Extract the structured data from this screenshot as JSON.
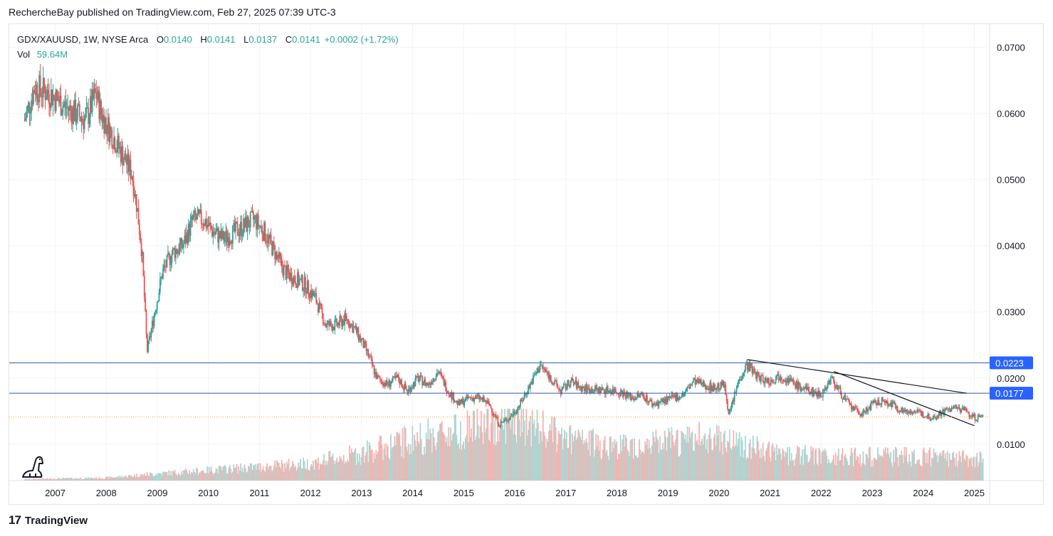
{
  "header": {
    "publisher": "RechercheBay published on TradingView.com, Feb 27, 2025 07:39 UTC-3"
  },
  "legend": {
    "symbol": "GDX/XAUUSD, 1W, NYSE Arca",
    "o_label": "O",
    "o_value": "0.0140",
    "h_label": "H",
    "h_value": "0.0141",
    "l_label": "L",
    "l_value": "0.0137",
    "c_label": "C",
    "c_value": "0.0141",
    "change": "+0.0002 (+1.72%)",
    "vol_label": "Vol",
    "vol_value": "59.64M"
  },
  "footer": {
    "brand": "TradingView",
    "logo": "tradingview-logo-icon"
  },
  "colors": {
    "up": "#26a69a",
    "down": "#ef5350",
    "hline": "#2a5caa",
    "trend": "#131722",
    "current": "#f7a625"
  },
  "chart_data": {
    "type": "candlestick",
    "symbol": "GDX/XAUUSD",
    "interval": "1W",
    "y_range": [
      0.0045,
      0.0735
    ],
    "x_range": [
      2006.1,
      2025.3
    ],
    "y_ticks": [
      "0.0700",
      "0.0600",
      "0.0500",
      "0.0400",
      "0.0300",
      "0.0200",
      "0.0100"
    ],
    "y_tick_values": [
      0.07,
      0.06,
      0.05,
      0.04,
      0.03,
      0.02,
      0.01
    ],
    "x_ticks": [
      "2007",
      "2008",
      "2009",
      "2010",
      "2011",
      "2012",
      "2013",
      "2014",
      "2015",
      "2016",
      "2017",
      "2018",
      "2019",
      "2020",
      "2021",
      "2022",
      "2023",
      "2024",
      "2025"
    ],
    "x_tick_values": [
      2007,
      2008,
      2009,
      2010,
      2011,
      2012,
      2013,
      2014,
      2015,
      2016,
      2017,
      2018,
      2019,
      2020,
      2021,
      2022,
      2023,
      2024,
      2025
    ],
    "price_path": [
      [
        2006.4,
        0.059
      ],
      [
        2006.6,
        0.064
      ],
      [
        2006.9,
        0.063
      ],
      [
        2007.2,
        0.061
      ],
      [
        2007.4,
        0.06
      ],
      [
        2007.6,
        0.059
      ],
      [
        2007.8,
        0.063
      ],
      [
        2007.9,
        0.06
      ],
      [
        2008.1,
        0.057
      ],
      [
        2008.3,
        0.054
      ],
      [
        2008.5,
        0.051
      ],
      [
        2008.6,
        0.046
      ],
      [
        2008.7,
        0.039
      ],
      [
        2008.8,
        0.024
      ],
      [
        2008.95,
        0.03
      ],
      [
        2009.1,
        0.036
      ],
      [
        2009.3,
        0.039
      ],
      [
        2009.5,
        0.04
      ],
      [
        2009.7,
        0.044
      ],
      [
        2009.9,
        0.044
      ],
      [
        2010.1,
        0.042
      ],
      [
        2010.3,
        0.041
      ],
      [
        2010.5,
        0.042
      ],
      [
        2010.7,
        0.043
      ],
      [
        2010.9,
        0.044
      ],
      [
        2011.1,
        0.042
      ],
      [
        2011.3,
        0.039
      ],
      [
        2011.5,
        0.036
      ],
      [
        2011.7,
        0.035
      ],
      [
        2011.9,
        0.034
      ],
      [
        2012.1,
        0.032
      ],
      [
        2012.3,
        0.028
      ],
      [
        2012.5,
        0.028
      ],
      [
        2012.7,
        0.029
      ],
      [
        2012.9,
        0.027
      ],
      [
        2013.1,
        0.024
      ],
      [
        2013.3,
        0.02
      ],
      [
        2013.5,
        0.019
      ],
      [
        2013.7,
        0.02
      ],
      [
        2013.9,
        0.018
      ],
      [
        2014.1,
        0.02
      ],
      [
        2014.3,
        0.019
      ],
      [
        2014.5,
        0.021
      ],
      [
        2014.7,
        0.018
      ],
      [
        2014.9,
        0.016
      ],
      [
        2015.1,
        0.017
      ],
      [
        2015.3,
        0.017
      ],
      [
        2015.5,
        0.016
      ],
      [
        2015.7,
        0.013
      ],
      [
        2015.9,
        0.014
      ],
      [
        2016.1,
        0.016
      ],
      [
        2016.3,
        0.019
      ],
      [
        2016.5,
        0.022
      ],
      [
        2016.7,
        0.02
      ],
      [
        2016.9,
        0.018
      ],
      [
        2017.1,
        0.0195
      ],
      [
        2017.3,
        0.0185
      ],
      [
        2017.5,
        0.0183
      ],
      [
        2017.7,
        0.0182
      ],
      [
        2017.9,
        0.0182
      ],
      [
        2018.1,
        0.0178
      ],
      [
        2018.3,
        0.017
      ],
      [
        2018.5,
        0.0175
      ],
      [
        2018.7,
        0.016
      ],
      [
        2018.9,
        0.0165
      ],
      [
        2019.1,
        0.017
      ],
      [
        2019.3,
        0.0175
      ],
      [
        2019.5,
        0.0195
      ],
      [
        2019.7,
        0.019
      ],
      [
        2019.9,
        0.0185
      ],
      [
        2020.1,
        0.019
      ],
      [
        2020.2,
        0.0145
      ],
      [
        2020.4,
        0.02
      ],
      [
        2020.55,
        0.022
      ],
      [
        2020.8,
        0.02
      ],
      [
        2021.0,
        0.0195
      ],
      [
        2021.2,
        0.0205
      ],
      [
        2021.4,
        0.0195
      ],
      [
        2021.6,
        0.0185
      ],
      [
        2021.8,
        0.018
      ],
      [
        2022.0,
        0.0175
      ],
      [
        2022.2,
        0.02
      ],
      [
        2022.4,
        0.0175
      ],
      [
        2022.6,
        0.0155
      ],
      [
        2022.8,
        0.0145
      ],
      [
        2023.0,
        0.016
      ],
      [
        2023.2,
        0.0165
      ],
      [
        2023.4,
        0.016
      ],
      [
        2023.6,
        0.015
      ],
      [
        2023.8,
        0.015
      ],
      [
        2024.0,
        0.0145
      ],
      [
        2024.2,
        0.014
      ],
      [
        2024.4,
        0.015
      ],
      [
        2024.6,
        0.0155
      ],
      [
        2024.8,
        0.0152
      ],
      [
        2025.0,
        0.014
      ],
      [
        2025.17,
        0.0141
      ]
    ],
    "volume_path": [
      [
        2006.4,
        0.4
      ],
      [
        2008.0,
        0.8
      ],
      [
        2009.0,
        2
      ],
      [
        2010.0,
        3
      ],
      [
        2011.0,
        4
      ],
      [
        2012.0,
        5
      ],
      [
        2013.0,
        8
      ],
      [
        2014.0,
        12
      ],
      [
        2015.0,
        15
      ],
      [
        2016.0,
        18
      ],
      [
        2017.0,
        12
      ],
      [
        2018.0,
        10
      ],
      [
        2019.0,
        11
      ],
      [
        2020.0,
        13
      ],
      [
        2021.0,
        8
      ],
      [
        2022.0,
        7
      ],
      [
        2023.0,
        7
      ],
      [
        2024.0,
        7
      ],
      [
        2025.17,
        6
      ]
    ],
    "volume_max": 20,
    "horizontal_lines": [
      {
        "value": 0.0223,
        "label": "0.0223"
      },
      {
        "value": 0.0177,
        "label": "0.0177"
      }
    ],
    "trendlines": [
      [
        [
          2020.55,
          0.0228
        ],
        [
          2024.85,
          0.0177
        ]
      ],
      [
        [
          2022.25,
          0.021
        ],
        [
          2025.0,
          0.0128
        ]
      ]
    ],
    "last_price": 0.0141
  }
}
